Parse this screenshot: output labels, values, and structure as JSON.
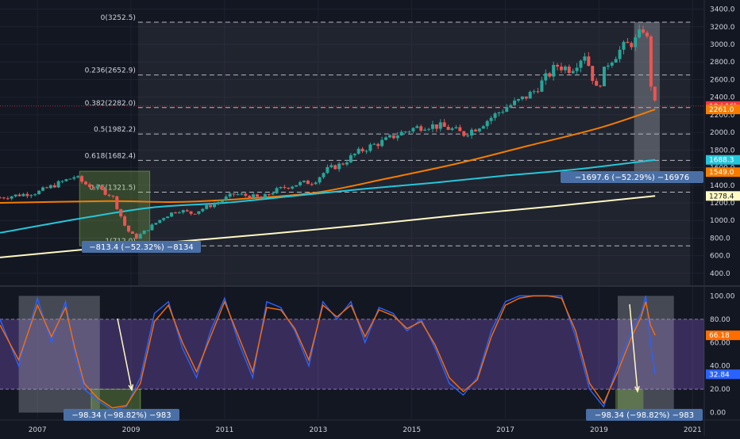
{
  "colors": {
    "background": "#131722",
    "up_candle": "#26a69a",
    "down_candle": "#ef5350",
    "fib_line": "#d1d4dc",
    "ma_orange": "#f57c00",
    "ma_teal": "#26c6da",
    "ma_cream": "#fff9c4",
    "stoch_k": "#2962ff",
    "stoch_d": "#ff6d00",
    "stoch_band": "#7e57c2",
    "measure_label_bg": "#4a6fa5",
    "price_tag_red": "#f23645"
  },
  "price_axis": {
    "ticks": [
      "3400.0",
      "3200.0",
      "3000.0",
      "2800.0",
      "2600.0",
      "2400.0",
      "2200.0",
      "2000.0",
      "1800.0",
      "1600.0",
      "1400.0",
      "1200.0",
      "1000.0",
      "800.0",
      "600.0",
      "400.0"
    ],
    "tags": [
      {
        "text": "10d 16h",
        "value": 2300
      },
      {
        "text": "2261.0",
        "value": 2261,
        "color": "#f57c00"
      },
      {
        "text": "1688.3",
        "value": 1688.3,
        "color": "#26c6da"
      },
      {
        "text": "1549.0",
        "value": 1549,
        "color": "#f57c00"
      },
      {
        "text": "1278.4",
        "value": 1278.4,
        "color": "#fff9c4"
      }
    ]
  },
  "fib_levels": [
    {
      "label": "0(3252.5)",
      "value": 3252.5
    },
    {
      "label": "0.236(2652.9)",
      "value": 2652.9
    },
    {
      "label": "0.382(2282.0)",
      "value": 2282.0
    },
    {
      "label": "0.5(1982.2)",
      "value": 1982.2
    },
    {
      "label": "0.618(1682.4)",
      "value": 1682.4
    },
    {
      "label": "0.76(1321.5)",
      "value": 1321.5
    },
    {
      "label": "1(712.0)",
      "value": 712.0
    }
  ],
  "measurements": {
    "price_2008": "−813.4 (−52.32%) −8134",
    "price_2020": "−1697.6 (−52.29%) −16976",
    "stoch_2008": "−98.34 (−98.82%) −983",
    "stoch_2020": "−98.34 (−98.82%) −983"
  },
  "stoch_axis": {
    "ticks": [
      "100.00",
      "80.00",
      "60.00",
      "40.00",
      "20.00",
      "0.00"
    ],
    "tags": [
      {
        "text": "66.18",
        "value": 66.18,
        "color": "#ff6d00"
      },
      {
        "text": "32.84",
        "value": 32.84,
        "color": "#2962ff"
      }
    ]
  },
  "x_axis": {
    "ticks": [
      "2007",
      "2009",
      "2011",
      "2013",
      "2015",
      "2017",
      "2019",
      "2021"
    ]
  },
  "chart_data": [
    {
      "type": "candlestick",
      "panel": "price",
      "x_range": [
        2006.2,
        2021.0
      ],
      "ylim": [
        300,
        3450
      ],
      "series_close": {
        "x": [
          2006.2,
          2006.6,
          2007.0,
          2007.4,
          2007.8,
          2008.0,
          2008.3,
          2008.6,
          2008.9,
          2009.1,
          2009.4,
          2009.7,
          2010.0,
          2010.3,
          2010.6,
          2010.9,
          2011.2,
          2011.5,
          2011.8,
          2012.0,
          2012.3,
          2012.6,
          2012.9,
          2013.2,
          2013.5,
          2013.8,
          2014.1,
          2014.4,
          2014.7,
          2015.0,
          2015.3,
          2015.6,
          2015.9,
          2016.1,
          2016.4,
          2016.7,
          2017.0,
          2017.3,
          2017.6,
          2017.9,
          2018.1,
          2018.4,
          2018.7,
          2018.95,
          2019.2,
          2019.5,
          2019.8,
          2020.0,
          2020.1,
          2020.2
        ],
        "y": [
          1260,
          1290,
          1320,
          1410,
          1500,
          1420,
          1360,
          1280,
          900,
          800,
          920,
          1040,
          1120,
          1080,
          1150,
          1220,
          1300,
          1280,
          1250,
          1320,
          1380,
          1420,
          1440,
          1580,
          1640,
          1760,
          1840,
          1900,
          1980,
          2040,
          2080,
          2070,
          2030,
          1980,
          2060,
          2170,
          2280,
          2360,
          2460,
          2640,
          2760,
          2720,
          2900,
          2480,
          2800,
          2960,
          3050,
          3230,
          2580,
          2300
        ]
      },
      "moving_averages": [
        {
          "color_key": "ma_orange",
          "x": [
            2006.2,
            2008.5,
            2010.0,
            2011.5,
            2013.0,
            2014.5,
            2016.0,
            2017.5,
            2019.0,
            2020.2
          ],
          "y": [
            1200,
            1220,
            1210,
            1250,
            1320,
            1480,
            1650,
            1850,
            2050,
            2261
          ]
        },
        {
          "color_key": "ma_teal",
          "x": [
            2006.2,
            2008.0,
            2009.5,
            2011.0,
            2012.5,
            2014.0,
            2015.5,
            2017.0,
            2018.5,
            2020.2
          ],
          "y": [
            860,
            1030,
            1150,
            1200,
            1280,
            1360,
            1430,
            1510,
            1580,
            1688.3
          ]
        },
        {
          "color_key": "ma_cream",
          "x": [
            2006.2,
            2008.0,
            2010.0,
            2012.0,
            2014.0,
            2016.0,
            2018.0,
            2020.2
          ],
          "y": [
            580,
            670,
            760,
            850,
            950,
            1060,
            1160,
            1278.4
          ]
        }
      ]
    },
    {
      "type": "line",
      "panel": "stochastic",
      "ylim": [
        -5,
        105
      ],
      "series": [
        {
          "color_key": "stoch_k",
          "x": [
            2006.2,
            2006.6,
            2007.0,
            2007.3,
            2007.6,
            2007.8,
            2008.0,
            2008.3,
            2008.6,
            2008.9,
            2009.2,
            2009.5,
            2009.8,
            2010.1,
            2010.4,
            2010.7,
            2011.0,
            2011.3,
            2011.6,
            2011.9,
            2012.2,
            2012.5,
            2012.8,
            2013.1,
            2013.4,
            2013.7,
            2014.0,
            2014.3,
            2014.6,
            2014.9,
            2015.2,
            2015.5,
            2015.8,
            2016.1,
            2016.4,
            2016.7,
            2017.0,
            2017.3,
            2017.6,
            2017.9,
            2018.2,
            2018.5,
            2018.8,
            2019.1,
            2019.4,
            2019.7,
            2019.9,
            2020.0,
            2020.1,
            2020.2
          ],
          "y": [
            80,
            40,
            98,
            60,
            95,
            50,
            20,
            10,
            2,
            5,
            30,
            85,
            95,
            55,
            30,
            70,
            98,
            60,
            30,
            95,
            90,
            70,
            40,
            95,
            80,
            95,
            60,
            90,
            85,
            70,
            80,
            55,
            25,
            15,
            30,
            70,
            95,
            100,
            100,
            100,
            100,
            65,
            20,
            5,
            40,
            70,
            85,
            100,
            60,
            32.84
          ]
        },
        {
          "color_key": "stoch_d",
          "x": [
            2006.2,
            2006.6,
            2007.0,
            2007.3,
            2007.6,
            2007.8,
            2008.0,
            2008.3,
            2008.6,
            2008.9,
            2009.2,
            2009.5,
            2009.8,
            2010.1,
            2010.4,
            2010.7,
            2011.0,
            2011.3,
            2011.6,
            2011.9,
            2012.2,
            2012.5,
            2012.8,
            2013.1,
            2013.4,
            2013.7,
            2014.0,
            2014.3,
            2014.6,
            2014.9,
            2015.2,
            2015.5,
            2015.8,
            2016.1,
            2016.4,
            2016.7,
            2017.0,
            2017.3,
            2017.6,
            2017.9,
            2018.2,
            2018.5,
            2018.8,
            2019.1,
            2019.4,
            2019.7,
            2019.9,
            2020.0,
            2020.1,
            2020.2
          ],
          "y": [
            75,
            45,
            92,
            65,
            90,
            55,
            25,
            12,
            4,
            6,
            25,
            78,
            92,
            60,
            35,
            65,
            95,
            65,
            35,
            90,
            88,
            72,
            45,
            92,
            82,
            92,
            65,
            88,
            83,
            72,
            78,
            58,
            30,
            18,
            28,
            65,
            92,
            98,
            100,
            100,
            98,
            70,
            25,
            8,
            35,
            65,
            82,
            95,
            75,
            66.18
          ]
        }
      ]
    }
  ]
}
